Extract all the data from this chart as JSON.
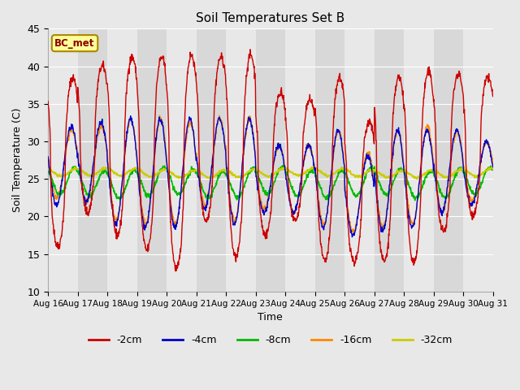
{
  "title": "Soil Temperatures Set B",
  "xlabel": "Time",
  "ylabel": "Soil Temperature (C)",
  "ylim": [
    10,
    45
  ],
  "xlim": [
    0,
    15
  ],
  "yticks": [
    10,
    15,
    20,
    25,
    30,
    35,
    40,
    45
  ],
  "xtick_labels": [
    "Aug 16",
    "Aug 17",
    "Aug 18",
    "Aug 19",
    "Aug 20",
    "Aug 21",
    "Aug 22",
    "Aug 23",
    "Aug 24",
    "Aug 25",
    "Aug 26",
    "Aug 27",
    "Aug 28",
    "Aug 29",
    "Aug 30",
    "Aug 31"
  ],
  "legend_label": "BC_met",
  "series_labels": [
    "-2cm",
    "-4cm",
    "-8cm",
    "-16cm",
    "-32cm"
  ],
  "series_colors": [
    "#cc0000",
    "#0000cc",
    "#00bb00",
    "#ff8800",
    "#cccc00"
  ],
  "background_color": "#e8e8e8",
  "plot_bg_color_light": "#e8e8e8",
  "plot_bg_color_dark": "#d8d8d8",
  "n_days": 15,
  "pts_per_day": 96,
  "peak_2cm": [
    38.5,
    40.0,
    41.2,
    41.2,
    41.5,
    41.2,
    41.5,
    36.5,
    35.5,
    38.5,
    32.5,
    38.5,
    39.2,
    39.0,
    38.5
  ],
  "trough_2cm": [
    16.0,
    20.5,
    17.5,
    15.5,
    13.0,
    19.5,
    14.5,
    17.5,
    19.5,
    14.0,
    14.0,
    14.0,
    14.0,
    18.0,
    20.0
  ],
  "peak_4cm": [
    32.0,
    32.5,
    33.0,
    33.0,
    33.0,
    33.0,
    33.0,
    29.5,
    29.5,
    31.5,
    28.0,
    31.5,
    31.5,
    31.5,
    30.0
  ],
  "trough_4cm": [
    21.5,
    22.0,
    19.0,
    18.5,
    18.5,
    21.0,
    19.0,
    20.5,
    20.5,
    18.5,
    17.5,
    18.0,
    18.5,
    20.5,
    21.5
  ],
  "peak_16cm": [
    31.5,
    32.0,
    33.0,
    33.0,
    32.5,
    33.0,
    33.0,
    29.5,
    29.5,
    31.5,
    28.5,
    31.5,
    32.0,
    31.5,
    30.0
  ],
  "trough_16cm": [
    22.5,
    22.0,
    19.5,
    19.0,
    19.0,
    21.5,
    19.5,
    21.0,
    20.5,
    19.0,
    18.0,
    18.5,
    19.0,
    20.5,
    22.0
  ],
  "mean_8cm": 24.5,
  "amp_8cm": 1.8,
  "mean_32cm": 25.8,
  "amp_32cm": 0.5
}
